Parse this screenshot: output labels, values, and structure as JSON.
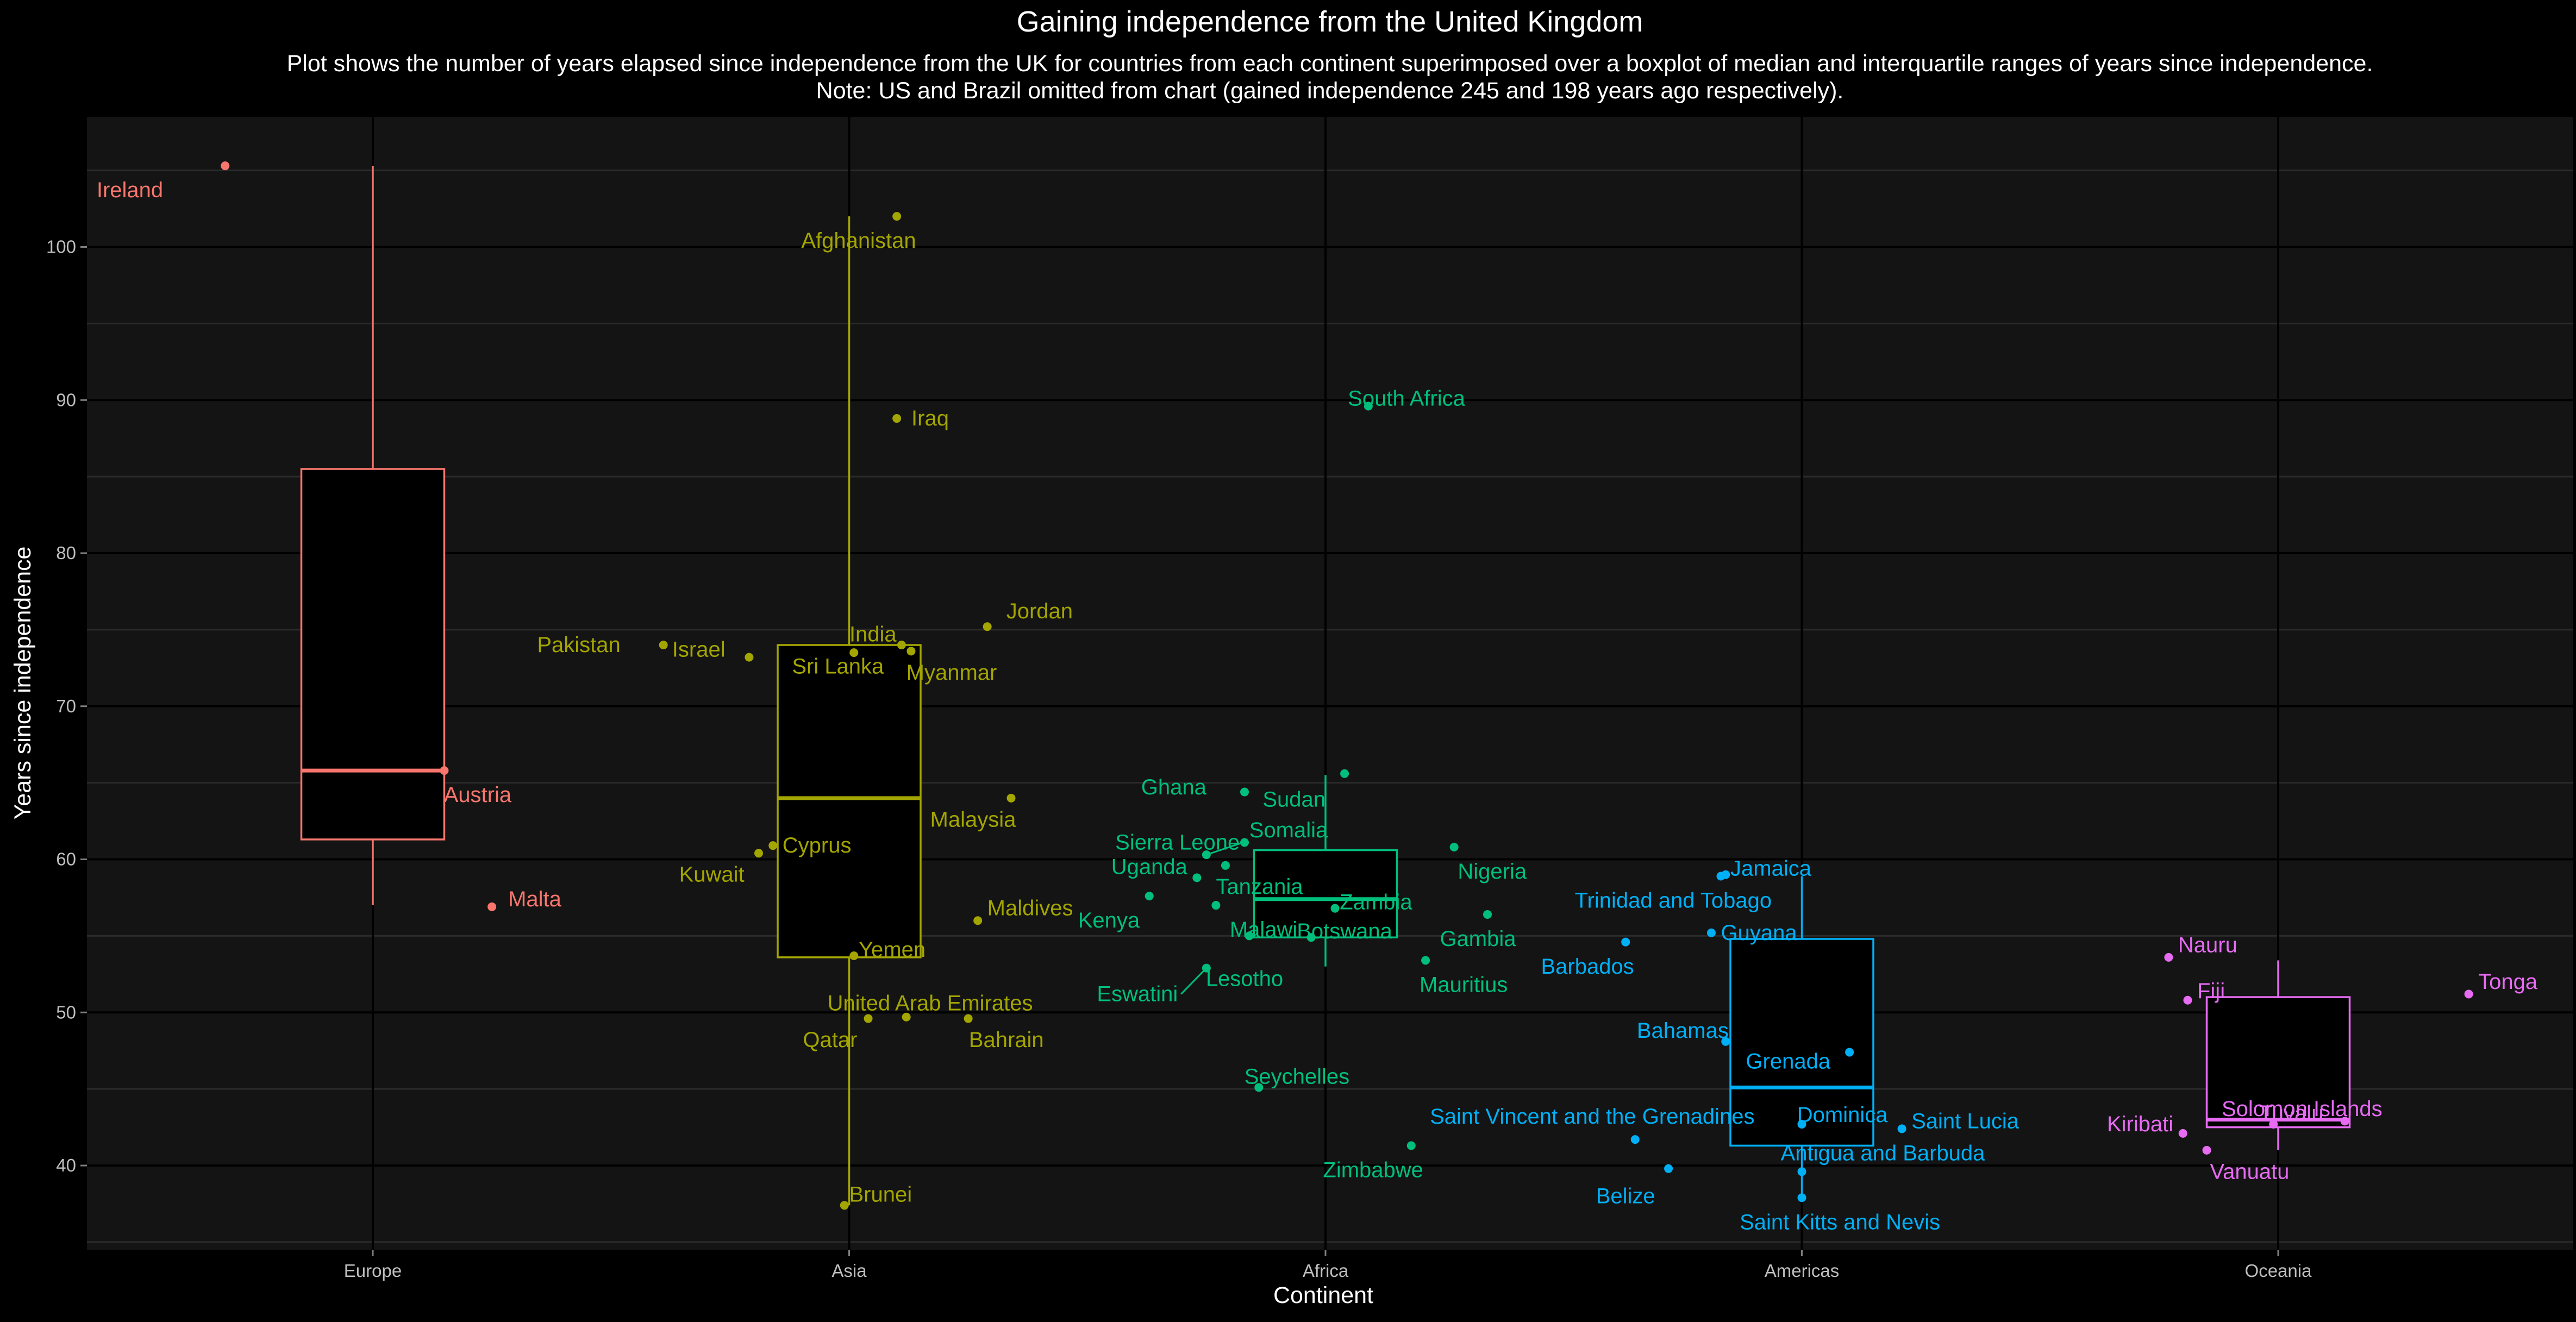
{
  "chart_data": {
    "type": "scatter",
    "title": "Gaining independence from the United Kingdom",
    "subtitle_lines": [
      "Plot shows the number of years elapsed since independence from the UK for countries from each continent superimposed over a boxplot of median and interquartile ranges of years since independence.",
      "Note: US and Brazil omitted from chart (gained independence 245 and 198 years ago respectively)."
    ],
    "xlabel": "Continent",
    "ylabel": "Years since independence",
    "categories": [
      "Europe",
      "Asia",
      "Africa",
      "Americas",
      "Oceania"
    ],
    "ylim": [
      34.5,
      108.5
    ],
    "yticks": [
      40,
      50,
      60,
      70,
      80,
      90,
      100
    ],
    "grid": true,
    "legend": "none",
    "colors": {
      "Europe": "#F8766D",
      "Asia": "#A3A500",
      "Africa": "#00BF7D",
      "Americas": "#00B0F6",
      "Oceania": "#E76BF3"
    },
    "boxes": [
      {
        "continent": "Europe",
        "min": 57,
        "q1": 61.3,
        "median": 65.8,
        "q3": 85.5,
        "max": 105.3
      },
      {
        "continent": "Asia",
        "min": 37.4,
        "q1": 53.6,
        "median": 64,
        "q3": 74,
        "max": 102
      },
      {
        "continent": "Africa",
        "min": 53,
        "q1": 54.9,
        "median": 57.4,
        "q3": 60.6,
        "max": 65.5
      },
      {
        "continent": "Americas",
        "min": 37.8,
        "q1": 41.3,
        "median": 45.1,
        "q3": 54.8,
        "max": 58.9
      },
      {
        "continent": "Oceania",
        "min": 41,
        "q1": 42.5,
        "median": 43,
        "q3": 51,
        "max": 53.4
      }
    ],
    "points": [
      {
        "continent": "Europe",
        "name": "Ireland",
        "x": -0.31,
        "y": 105.3
      },
      {
        "continent": "Europe",
        "name": "Austria",
        "x": 0.15,
        "y": 65.8
      },
      {
        "continent": "Europe",
        "name": "Malta",
        "x": 0.25,
        "y": 56.9
      },
      {
        "continent": "Asia",
        "name": "Afghanistan",
        "x": 0.1,
        "y": 102
      },
      {
        "continent": "Asia",
        "name": "Iraq",
        "x": 0.1,
        "y": 88.8
      },
      {
        "continent": "Asia",
        "name": "Pakistan",
        "x": -0.39,
        "y": 74
      },
      {
        "continent": "Asia",
        "name": "Israel",
        "x": -0.21,
        "y": 73.2
      },
      {
        "continent": "Asia",
        "name": "India",
        "x": 0.01,
        "y": 73.5
      },
      {
        "continent": "Asia",
        "name": "Sri Lanka",
        "x": 0.11,
        "y": 74
      },
      {
        "continent": "Asia",
        "name": "Myanmar",
        "x": 0.13,
        "y": 73.6
      },
      {
        "continent": "Asia",
        "name": "Jordan",
        "x": 0.29,
        "y": 75.2
      },
      {
        "continent": "Asia",
        "name": "Malaysia",
        "x": 0.34,
        "y": 64
      },
      {
        "continent": "Asia",
        "name": "Cyprus",
        "x": -0.16,
        "y": 60.9
      },
      {
        "continent": "Asia",
        "name": "Kuwait",
        "x": -0.19,
        "y": 60.4
      },
      {
        "continent": "Asia",
        "name": "Maldives",
        "x": 0.27,
        "y": 56
      },
      {
        "continent": "Asia",
        "name": "Yemen",
        "x": 0.01,
        "y": 53.7
      },
      {
        "continent": "Asia",
        "name": "United Arab Emirates",
        "x": 0.12,
        "y": 49.7
      },
      {
        "continent": "Asia",
        "name": "Qatar",
        "x": 0.04,
        "y": 49.6
      },
      {
        "continent": "Asia",
        "name": "Bahrain",
        "x": 0.25,
        "y": 49.6
      },
      {
        "continent": "Asia",
        "name": "Brunei",
        "x": -0.01,
        "y": 37.4
      },
      {
        "continent": "Africa",
        "name": "South Africa",
        "x": 0.09,
        "y": 89.6
      },
      {
        "continent": "Africa",
        "name": "Ghana",
        "x": -0.17,
        "y": 64.4
      },
      {
        "continent": "Africa",
        "name": "Sudan",
        "x": 0.04,
        "y": 65.6
      },
      {
        "continent": "Africa",
        "name": "Sierra Leone",
        "x": -0.25,
        "y": 60.3
      },
      {
        "continent": "Africa",
        "name": "Somalia",
        "x": -0.17,
        "y": 61.1
      },
      {
        "continent": "Africa",
        "name": "Uganda",
        "x": -0.27,
        "y": 58.8
      },
      {
        "continent": "Africa",
        "name": "Tanzania",
        "x": -0.21,
        "y": 59.6
      },
      {
        "continent": "Africa",
        "name": "Kenya",
        "x": -0.37,
        "y": 57.6
      },
      {
        "continent": "Africa",
        "name": "Malawi",
        "x": -0.23,
        "y": 57
      },
      {
        "continent": "Africa",
        "name": "Zambia",
        "x": 0.02,
        "y": 56.8
      },
      {
        "continent": "Africa",
        "name": "Botswana",
        "x": -0.03,
        "y": 54.9
      },
      {
        "continent": "Africa",
        "name": "Lesotho",
        "x": -0.16,
        "y": 55
      },
      {
        "continent": "Africa",
        "name": "Eswatini",
        "x": -0.25,
        "y": 52.9
      },
      {
        "continent": "Africa",
        "name": "Nigeria",
        "x": 0.27,
        "y": 60.8
      },
      {
        "continent": "Africa",
        "name": "Gambia",
        "x": 0.34,
        "y": 56.4
      },
      {
        "continent": "Africa",
        "name": "Mauritius",
        "x": 0.21,
        "y": 53.4
      },
      {
        "continent": "Africa",
        "name": "Seychelles",
        "x": -0.14,
        "y": 45.1
      },
      {
        "continent": "Africa",
        "name": "Zimbabwe",
        "x": 0.18,
        "y": 41.3
      },
      {
        "continent": "Americas",
        "name": "Jamaica",
        "x": -0.16,
        "y": 59
      },
      {
        "continent": "Americas",
        "name": "Trinidad and Tobago",
        "x": -0.17,
        "y": 58.9
      },
      {
        "continent": "Americas",
        "name": "Guyana",
        "x": -0.19,
        "y": 55.2
      },
      {
        "continent": "Americas",
        "name": "Barbados",
        "x": -0.37,
        "y": 54.6
      },
      {
        "continent": "Americas",
        "name": "Bahamas",
        "x": -0.16,
        "y": 48.1
      },
      {
        "continent": "Americas",
        "name": "Grenada",
        "x": 0.1,
        "y": 47.4
      },
      {
        "continent": "Americas",
        "name": "Dominica",
        "x": 0,
        "y": 42.7
      },
      {
        "continent": "Americas",
        "name": "Saint Lucia",
        "x": 0.21,
        "y": 42.4
      },
      {
        "continent": "Americas",
        "name": "Saint Vincent and the Grenadines",
        "x": -0.35,
        "y": 41.7
      },
      {
        "continent": "Americas",
        "name": "Antigua and Barbuda",
        "x": 0,
        "y": 39.6
      },
      {
        "continent": "Americas",
        "name": "Belize",
        "x": -0.28,
        "y": 39.8
      },
      {
        "continent": "Americas",
        "name": "Saint Kitts and Nevis",
        "x": 0,
        "y": 37.9
      },
      {
        "continent": "Oceania",
        "name": "Nauru",
        "x": -0.23,
        "y": 53.6
      },
      {
        "continent": "Oceania",
        "name": "Fiji",
        "x": -0.19,
        "y": 50.8
      },
      {
        "continent": "Oceania",
        "name": "Tonga",
        "x": 0.4,
        "y": 51.2
      },
      {
        "continent": "Oceania",
        "name": "Kiribati",
        "x": -0.2,
        "y": 42.1
      },
      {
        "continent": "Oceania",
        "name": "Tuvalu",
        "x": -0.01,
        "y": 42.7
      },
      {
        "continent": "Oceania",
        "name": "Solomon Islands",
        "x": 0.14,
        "y": 42.9
      },
      {
        "continent": "Oceania",
        "name": "Vanuatu",
        "x": -0.15,
        "y": 41
      }
    ]
  }
}
